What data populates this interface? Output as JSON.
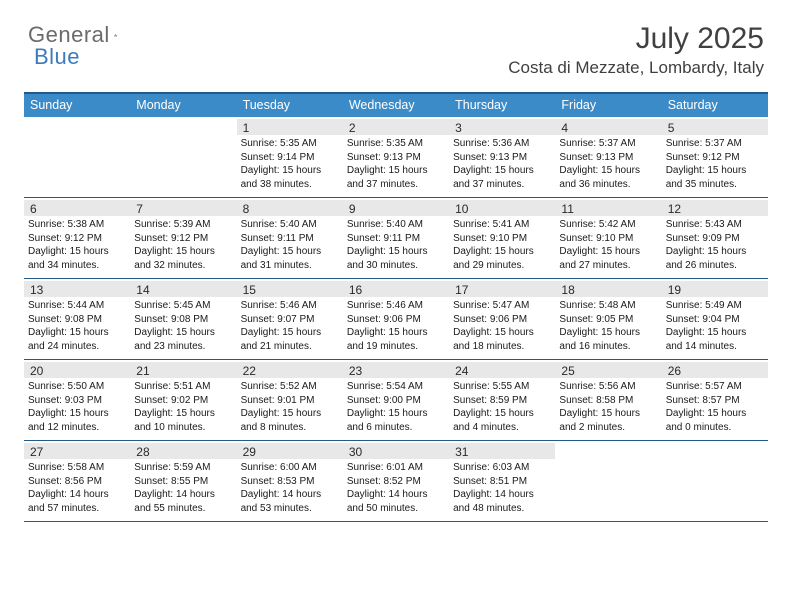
{
  "logo": {
    "text1": "General",
    "text2": "Blue"
  },
  "title": "July 2025",
  "location": "Costa di Mezzate, Lombardy, Italy",
  "weekday_header_bg": "#3b8bc8",
  "weekday_header_fg": "#ffffff",
  "rule_color": "#1f5c8b",
  "daynum_bg": "#e8e8e8",
  "weekdays": [
    "Sunday",
    "Monday",
    "Tuesday",
    "Wednesday",
    "Thursday",
    "Friday",
    "Saturday"
  ],
  "weeks": [
    [
      {
        "empty": true
      },
      {
        "empty": true
      },
      {
        "n": "1",
        "sunrise": "Sunrise: 5:35 AM",
        "sunset": "Sunset: 9:14 PM",
        "day1": "Daylight: 15 hours",
        "day2": "and 38 minutes."
      },
      {
        "n": "2",
        "sunrise": "Sunrise: 5:35 AM",
        "sunset": "Sunset: 9:13 PM",
        "day1": "Daylight: 15 hours",
        "day2": "and 37 minutes."
      },
      {
        "n": "3",
        "sunrise": "Sunrise: 5:36 AM",
        "sunset": "Sunset: 9:13 PM",
        "day1": "Daylight: 15 hours",
        "day2": "and 37 minutes."
      },
      {
        "n": "4",
        "sunrise": "Sunrise: 5:37 AM",
        "sunset": "Sunset: 9:13 PM",
        "day1": "Daylight: 15 hours",
        "day2": "and 36 minutes."
      },
      {
        "n": "5",
        "sunrise": "Sunrise: 5:37 AM",
        "sunset": "Sunset: 9:12 PM",
        "day1": "Daylight: 15 hours",
        "day2": "and 35 minutes."
      }
    ],
    [
      {
        "n": "6",
        "sunrise": "Sunrise: 5:38 AM",
        "sunset": "Sunset: 9:12 PM",
        "day1": "Daylight: 15 hours",
        "day2": "and 34 minutes."
      },
      {
        "n": "7",
        "sunrise": "Sunrise: 5:39 AM",
        "sunset": "Sunset: 9:12 PM",
        "day1": "Daylight: 15 hours",
        "day2": "and 32 minutes."
      },
      {
        "n": "8",
        "sunrise": "Sunrise: 5:40 AM",
        "sunset": "Sunset: 9:11 PM",
        "day1": "Daylight: 15 hours",
        "day2": "and 31 minutes."
      },
      {
        "n": "9",
        "sunrise": "Sunrise: 5:40 AM",
        "sunset": "Sunset: 9:11 PM",
        "day1": "Daylight: 15 hours",
        "day2": "and 30 minutes."
      },
      {
        "n": "10",
        "sunrise": "Sunrise: 5:41 AM",
        "sunset": "Sunset: 9:10 PM",
        "day1": "Daylight: 15 hours",
        "day2": "and 29 minutes."
      },
      {
        "n": "11",
        "sunrise": "Sunrise: 5:42 AM",
        "sunset": "Sunset: 9:10 PM",
        "day1": "Daylight: 15 hours",
        "day2": "and 27 minutes."
      },
      {
        "n": "12",
        "sunrise": "Sunrise: 5:43 AM",
        "sunset": "Sunset: 9:09 PM",
        "day1": "Daylight: 15 hours",
        "day2": "and 26 minutes."
      }
    ],
    [
      {
        "n": "13",
        "sunrise": "Sunrise: 5:44 AM",
        "sunset": "Sunset: 9:08 PM",
        "day1": "Daylight: 15 hours",
        "day2": "and 24 minutes."
      },
      {
        "n": "14",
        "sunrise": "Sunrise: 5:45 AM",
        "sunset": "Sunset: 9:08 PM",
        "day1": "Daylight: 15 hours",
        "day2": "and 23 minutes."
      },
      {
        "n": "15",
        "sunrise": "Sunrise: 5:46 AM",
        "sunset": "Sunset: 9:07 PM",
        "day1": "Daylight: 15 hours",
        "day2": "and 21 minutes."
      },
      {
        "n": "16",
        "sunrise": "Sunrise: 5:46 AM",
        "sunset": "Sunset: 9:06 PM",
        "day1": "Daylight: 15 hours",
        "day2": "and 19 minutes."
      },
      {
        "n": "17",
        "sunrise": "Sunrise: 5:47 AM",
        "sunset": "Sunset: 9:06 PM",
        "day1": "Daylight: 15 hours",
        "day2": "and 18 minutes."
      },
      {
        "n": "18",
        "sunrise": "Sunrise: 5:48 AM",
        "sunset": "Sunset: 9:05 PM",
        "day1": "Daylight: 15 hours",
        "day2": "and 16 minutes."
      },
      {
        "n": "19",
        "sunrise": "Sunrise: 5:49 AM",
        "sunset": "Sunset: 9:04 PM",
        "day1": "Daylight: 15 hours",
        "day2": "and 14 minutes."
      }
    ],
    [
      {
        "n": "20",
        "sunrise": "Sunrise: 5:50 AM",
        "sunset": "Sunset: 9:03 PM",
        "day1": "Daylight: 15 hours",
        "day2": "and 12 minutes."
      },
      {
        "n": "21",
        "sunrise": "Sunrise: 5:51 AM",
        "sunset": "Sunset: 9:02 PM",
        "day1": "Daylight: 15 hours",
        "day2": "and 10 minutes."
      },
      {
        "n": "22",
        "sunrise": "Sunrise: 5:52 AM",
        "sunset": "Sunset: 9:01 PM",
        "day1": "Daylight: 15 hours",
        "day2": "and 8 minutes."
      },
      {
        "n": "23",
        "sunrise": "Sunrise: 5:54 AM",
        "sunset": "Sunset: 9:00 PM",
        "day1": "Daylight: 15 hours",
        "day2": "and 6 minutes."
      },
      {
        "n": "24",
        "sunrise": "Sunrise: 5:55 AM",
        "sunset": "Sunset: 8:59 PM",
        "day1": "Daylight: 15 hours",
        "day2": "and 4 minutes."
      },
      {
        "n": "25",
        "sunrise": "Sunrise: 5:56 AM",
        "sunset": "Sunset: 8:58 PM",
        "day1": "Daylight: 15 hours",
        "day2": "and 2 minutes."
      },
      {
        "n": "26",
        "sunrise": "Sunrise: 5:57 AM",
        "sunset": "Sunset: 8:57 PM",
        "day1": "Daylight: 15 hours",
        "day2": "and 0 minutes."
      }
    ],
    [
      {
        "n": "27",
        "sunrise": "Sunrise: 5:58 AM",
        "sunset": "Sunset: 8:56 PM",
        "day1": "Daylight: 14 hours",
        "day2": "and 57 minutes."
      },
      {
        "n": "28",
        "sunrise": "Sunrise: 5:59 AM",
        "sunset": "Sunset: 8:55 PM",
        "day1": "Daylight: 14 hours",
        "day2": "and 55 minutes."
      },
      {
        "n": "29",
        "sunrise": "Sunrise: 6:00 AM",
        "sunset": "Sunset: 8:53 PM",
        "day1": "Daylight: 14 hours",
        "day2": "and 53 minutes."
      },
      {
        "n": "30",
        "sunrise": "Sunrise: 6:01 AM",
        "sunset": "Sunset: 8:52 PM",
        "day1": "Daylight: 14 hours",
        "day2": "and 50 minutes."
      },
      {
        "n": "31",
        "sunrise": "Sunrise: 6:03 AM",
        "sunset": "Sunset: 8:51 PM",
        "day1": "Daylight: 14 hours",
        "day2": "and 48 minutes."
      },
      {
        "empty": true
      },
      {
        "empty": true
      }
    ]
  ]
}
